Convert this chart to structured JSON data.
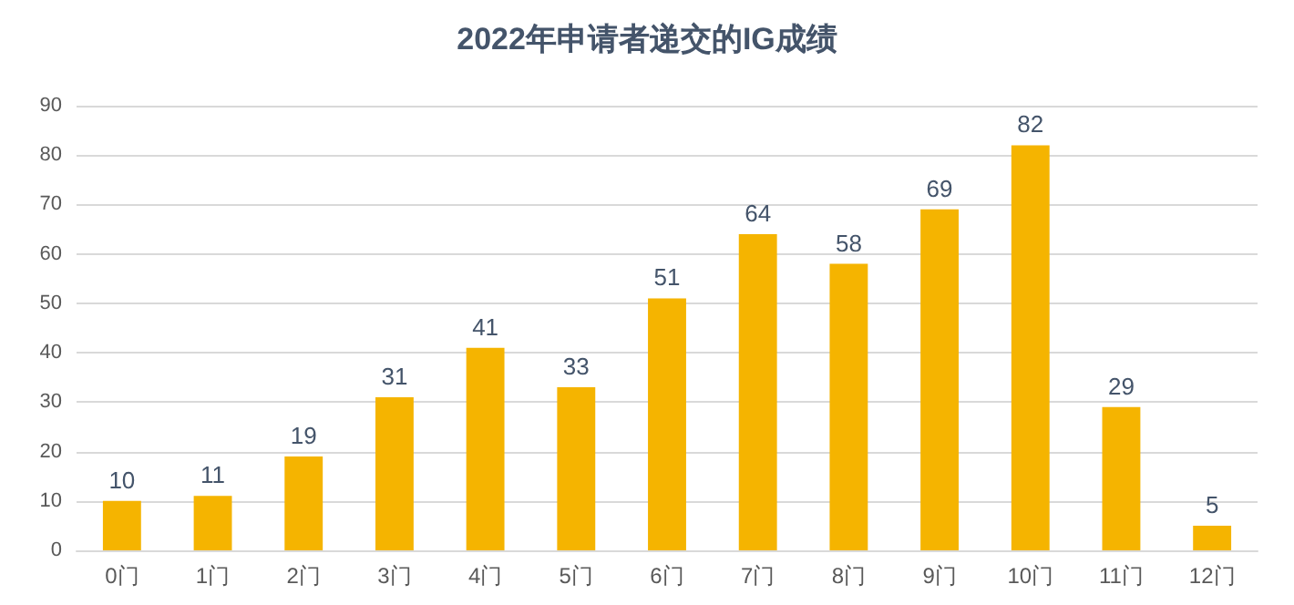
{
  "chart_data": {
    "type": "bar",
    "title": "2022年申请者递交的IG成绩",
    "categories": [
      "0门",
      "1门",
      "2门",
      "3门",
      "4门",
      "5门",
      "6门",
      "7门",
      "8门",
      "9门",
      "10门",
      "11门",
      "12门"
    ],
    "values": [
      10,
      11,
      19,
      31,
      41,
      33,
      51,
      64,
      58,
      69,
      82,
      29,
      5
    ],
    "color": "#f5b400",
    "ylim": [
      0,
      90
    ],
    "yticks": [
      0,
      10,
      20,
      30,
      40,
      50,
      60,
      70,
      80,
      90
    ],
    "grid": "y",
    "data_labels": true
  }
}
